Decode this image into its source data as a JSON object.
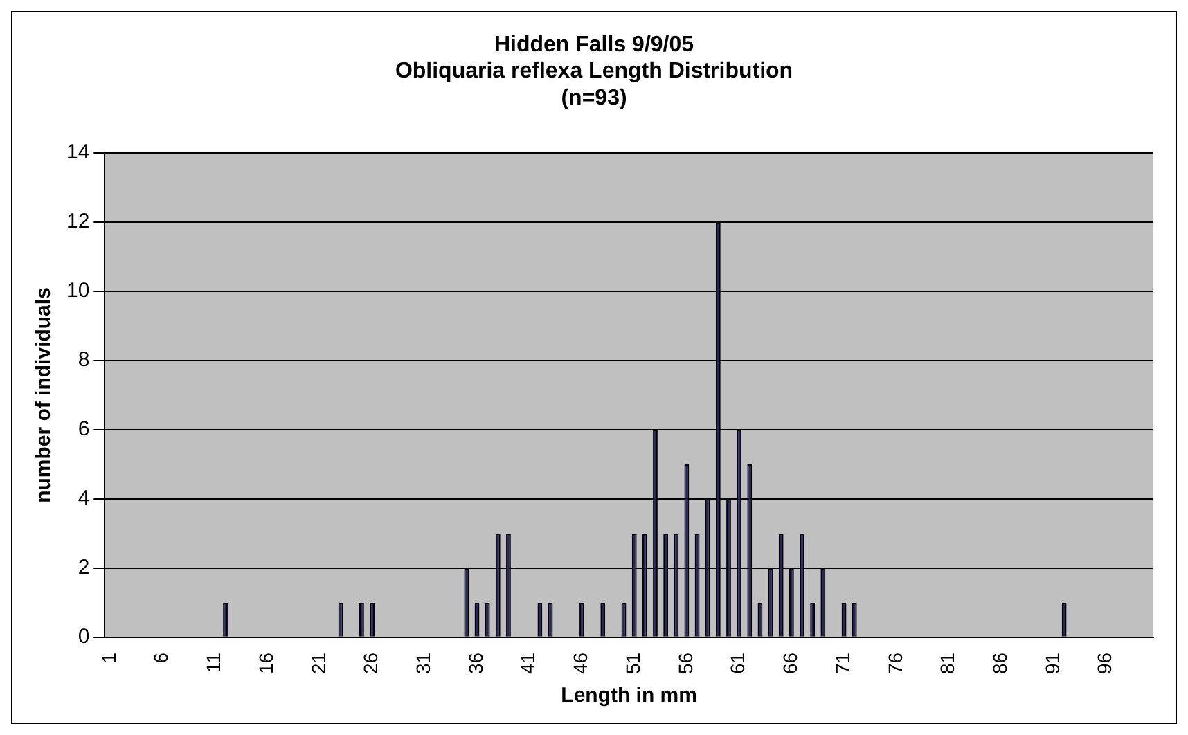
{
  "chart_data": {
    "type": "bar",
    "title": "Hidden Falls 9/9/05\nObliquaria reflexa Length Distribution\n(n=93)",
    "xlabel": "Length in mm",
    "ylabel": "number of individuals",
    "categories": [
      "1",
      null,
      null,
      null,
      null,
      "6",
      null,
      null,
      null,
      null,
      "11",
      null,
      null,
      null,
      null,
      "16",
      null,
      null,
      null,
      null,
      "21",
      null,
      null,
      null,
      null,
      "26",
      null,
      null,
      null,
      null,
      "31",
      null,
      null,
      null,
      null,
      "36",
      null,
      null,
      null,
      null,
      "41",
      null,
      null,
      null,
      null,
      "46",
      null,
      null,
      null,
      null,
      "51",
      null,
      null,
      null,
      null,
      "56",
      null,
      null,
      null,
      null,
      "61",
      null,
      null,
      null,
      null,
      "66",
      null,
      null,
      null,
      null,
      "71",
      null,
      null,
      null,
      null,
      "76",
      null,
      null,
      null,
      null,
      "81",
      null,
      null,
      null,
      null,
      "86",
      null,
      null,
      null,
      null,
      "91",
      null,
      null,
      null,
      null,
      "96",
      null,
      null,
      null,
      null
    ],
    "values": [
      0,
      0,
      0,
      0,
      0,
      0,
      0,
      0,
      0,
      0,
      0,
      1,
      0,
      0,
      0,
      0,
      0,
      0,
      0,
      0,
      0,
      0,
      1,
      0,
      1,
      1,
      0,
      0,
      0,
      0,
      0,
      0,
      0,
      0,
      2,
      1,
      1,
      3,
      3,
      0,
      0,
      1,
      1,
      0,
      0,
      1,
      0,
      1,
      0,
      1,
      3,
      3,
      6,
      3,
      3,
      5,
      3,
      4,
      12,
      4,
      6,
      5,
      1,
      2,
      3,
      2,
      3,
      1,
      2,
      0,
      1,
      1,
      0,
      0,
      0,
      0,
      0,
      0,
      0,
      0,
      0,
      0,
      0,
      0,
      0,
      0,
      0,
      0,
      0,
      0,
      0,
      1,
      0,
      0,
      0,
      0,
      0,
      0,
      0,
      0
    ],
    "color": "#262660",
    "ylim": [
      0,
      14
    ],
    "yticks": [
      0,
      2,
      4,
      6,
      8,
      10,
      12,
      14
    ],
    "grid": "y",
    "legend": false
  }
}
